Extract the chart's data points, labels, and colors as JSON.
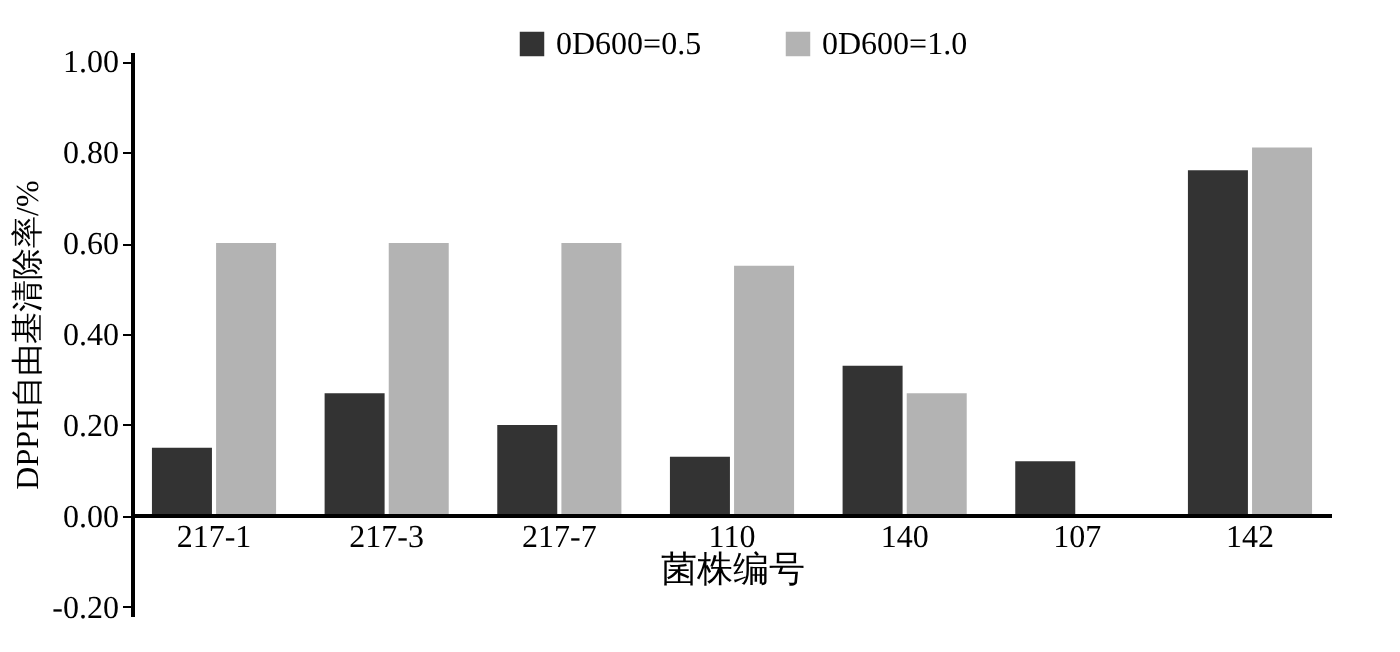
{
  "chart_data": {
    "type": "bar",
    "xlabel": "菌株编号",
    "ylabel": "DPPH自由基清除率/%",
    "categories": [
      "217-1",
      "217-3",
      "217-7",
      "110",
      "140",
      "107",
      "142"
    ],
    "series": [
      {
        "name": "0D600=0.5",
        "color": "#333333",
        "values": [
          0.15,
          0.27,
          0.2,
          0.13,
          0.33,
          0.12,
          0.76
        ]
      },
      {
        "name": "0D600=1.0",
        "color": "#b3b3b3",
        "values": [
          0.6,
          0.6,
          0.6,
          0.55,
          0.27,
          null,
          0.81
        ]
      }
    ],
    "ylim": [
      -0.22,
      1.02
    ],
    "yticks": [
      {
        "value": -0.2,
        "label": "-0.20"
      },
      {
        "value": 0.0,
        "label": "0.00"
      },
      {
        "value": 0.2,
        "label": "0.20"
      },
      {
        "value": 0.4,
        "label": "0.40"
      },
      {
        "value": 0.6,
        "label": "0.60"
      },
      {
        "value": 0.8,
        "label": "0.80"
      },
      {
        "value": 1.0,
        "label": "1.00"
      }
    ],
    "grid": false,
    "legend": "top"
  }
}
